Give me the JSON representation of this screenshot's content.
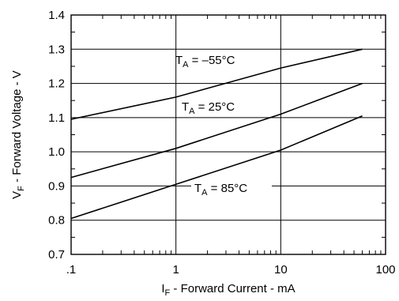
{
  "chart_data": {
    "type": "line",
    "title": "",
    "xlabel": {
      "symbol": "I",
      "subscript": "F",
      "text": " - Forward Current - mA"
    },
    "ylabel": {
      "symbol": "V",
      "subscript": "F",
      "text": " - Forward Voltage - V"
    },
    "x_scale": "log",
    "xlim": [
      0.1,
      100
    ],
    "ylim": [
      0.7,
      1.4
    ],
    "x_ticks": [
      {
        "value": 0.1,
        "label": ".1"
      },
      {
        "value": 1,
        "label": "1"
      },
      {
        "value": 10,
        "label": "10"
      },
      {
        "value": 100,
        "label": "100"
      }
    ],
    "y_ticks": [
      {
        "value": 0.7,
        "label": "0.7"
      },
      {
        "value": 0.8,
        "label": "0.8"
      },
      {
        "value": 0.9,
        "label": "0.9"
      },
      {
        "value": 1.0,
        "label": "1.0"
      },
      {
        "value": 1.1,
        "label": "1.1"
      },
      {
        "value": 1.2,
        "label": "1.2"
      },
      {
        "value": 1.3,
        "label": "1.3"
      },
      {
        "value": 1.4,
        "label": "1.4"
      }
    ],
    "grid": {
      "x_major": true,
      "y_major": true,
      "x_minor_ticks": true
    },
    "series": [
      {
        "label_symbol": "T",
        "label_subscript": "A",
        "label_text": " = –55°C",
        "x": [
          0.1,
          1,
          10,
          60
        ],
        "y": [
          1.095,
          1.16,
          1.245,
          1.3
        ]
      },
      {
        "label_symbol": "T",
        "label_subscript": "A",
        "label_text": " = 25°C",
        "x": [
          0.1,
          1,
          10,
          60
        ],
        "y": [
          0.925,
          1.01,
          1.11,
          1.2
        ]
      },
      {
        "label_symbol": "T",
        "label_subscript": "A",
        "label_text": " = 85°C",
        "x": [
          0.1,
          1,
          10,
          60
        ],
        "y": [
          0.805,
          0.905,
          1.005,
          1.105
        ]
      }
    ]
  }
}
